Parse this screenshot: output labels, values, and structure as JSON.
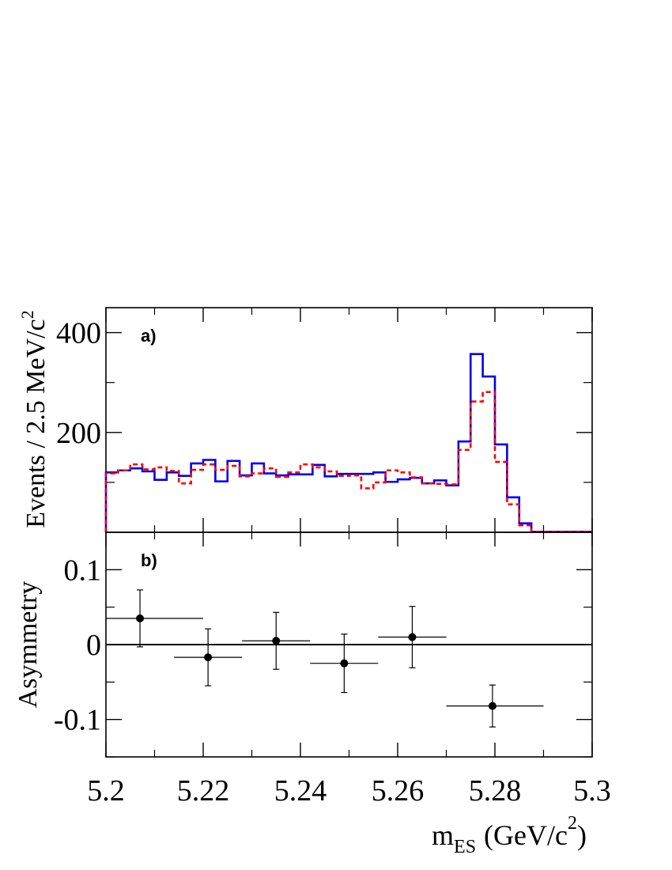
{
  "chart_data": [
    {
      "type": "line",
      "panel_label": "a)",
      "ylabel": "Events / 2.5 MeV/c",
      "ylabel_sup": "2",
      "xlim": [
        5.2,
        5.3
      ],
      "ylim": [
        0,
        450
      ],
      "y_tick_labels": [
        "200",
        "400"
      ],
      "y_major_ticks": [
        200,
        400
      ],
      "y_minor_ticks": [
        100,
        300
      ],
      "bin_edges": [
        5.2,
        5.2025,
        5.205,
        5.2075,
        5.21,
        5.2125,
        5.215,
        5.2175,
        5.22,
        5.2225,
        5.225,
        5.2275,
        5.23,
        5.2325,
        5.235,
        5.2375,
        5.24,
        5.2425,
        5.245,
        5.2475,
        5.25,
        5.2525,
        5.255,
        5.2575,
        5.26,
        5.2625,
        5.265,
        5.2675,
        5.27,
        5.2725,
        5.275,
        5.2775,
        5.28,
        5.2825,
        5.285,
        5.2875,
        5.29,
        5.2925,
        5.295,
        5.2975,
        5.3
      ],
      "series": [
        {
          "color": "#0000ee",
          "style": "solid",
          "values": [
            120,
            124,
            128,
            122,
            105,
            120,
            113,
            138,
            145,
            102,
            143,
            114,
            138,
            118,
            114,
            116,
            116,
            135,
            112,
            117,
            117,
            117,
            120,
            101,
            106,
            109,
            98,
            104,
            94,
            182,
            357,
            312,
            176,
            70,
            18,
            1,
            1,
            1,
            1,
            1
          ]
        },
        {
          "color": "#ff0000",
          "style": "dashed",
          "values": [
            118,
            124,
            136,
            126,
            130,
            123,
            98,
            125,
            136,
            125,
            133,
            112,
            118,
            128,
            111,
            120,
            136,
            130,
            122,
            113,
            114,
            88,
            100,
            124,
            120,
            110,
            98,
            97,
            96,
            165,
            262,
            281,
            141,
            56,
            14,
            1,
            1,
            1,
            1,
            1
          ]
        }
      ]
    },
    {
      "type": "scatter",
      "panel_label": "b)",
      "ylabel": "Asymmetry",
      "xlabel_main": "m",
      "xlabel_sub": "ES",
      "xlabel_unit": "(GeV/c",
      "xlabel_sup": "2",
      "xlabel_close": ")",
      "xlim": [
        5.2,
        5.3
      ],
      "ylim": [
        -0.15,
        0.15
      ],
      "x_tick_values": [
        5.2,
        5.22,
        5.24,
        5.26,
        5.28,
        5.3
      ],
      "x_tick_labels": [
        "5.2",
        "5.22",
        "5.24",
        "5.26",
        "5.28",
        "5.3"
      ],
      "y_tick_values": [
        -0.1,
        0,
        0.1
      ],
      "y_tick_labels": [
        "-0.1",
        "0",
        "0.1"
      ],
      "points": [
        {
          "x": 5.207,
          "y": 0.035,
          "x_lo": 5.2,
          "x_hi": 5.22,
          "y_err": 0.038
        },
        {
          "x": 5.221,
          "y": -0.017,
          "x_lo": 5.214,
          "x_hi": 5.228,
          "y_err": 0.038
        },
        {
          "x": 5.235,
          "y": 0.005,
          "x_lo": 5.228,
          "x_hi": 5.242,
          "y_err": 0.038
        },
        {
          "x": 5.249,
          "y": -0.025,
          "x_lo": 5.242,
          "x_hi": 5.256,
          "y_err": 0.039
        },
        {
          "x": 5.263,
          "y": 0.01,
          "x_lo": 5.256,
          "x_hi": 5.27,
          "y_err": 0.041
        },
        {
          "x": 5.2795,
          "y": -0.082,
          "x_lo": 5.27,
          "x_hi": 5.29,
          "y_err": 0.028
        }
      ],
      "zero_line": true
    }
  ]
}
